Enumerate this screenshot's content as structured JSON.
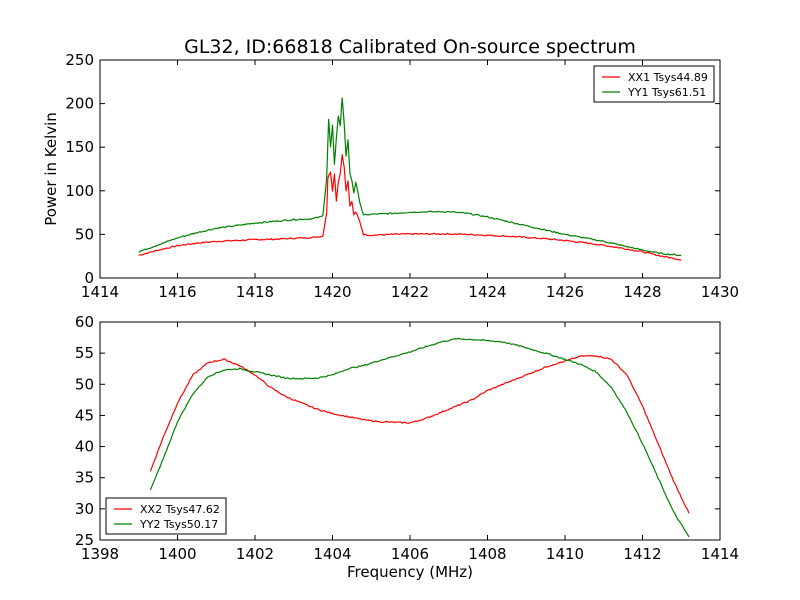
{
  "chart_data": [
    {
      "type": "line",
      "title": "GL32, ID:66818 Calibrated On-source spectrum",
      "xlabel": "",
      "ylabel": "Power in Kelvin",
      "xlim": [
        1414,
        1430
      ],
      "ylim": [
        0,
        250
      ],
      "xticks": [
        1414,
        1416,
        1418,
        1420,
        1422,
        1424,
        1426,
        1428,
        1430
      ],
      "yticks": [
        0,
        50,
        100,
        150,
        200,
        250
      ],
      "legend": "top-right",
      "grid": false,
      "series": [
        {
          "name": "XX1 Tsys44.89",
          "color": "#ff0000",
          "x": [
            1415,
            1415.5,
            1416,
            1416.5,
            1417,
            1417.5,
            1418,
            1418.5,
            1419,
            1419.5,
            1419.75,
            1419.85,
            1419.88,
            1419.95,
            1420.0,
            1420.05,
            1420.1,
            1420.15,
            1420.2,
            1420.25,
            1420.3,
            1420.35,
            1420.4,
            1420.45,
            1420.5,
            1420.55,
            1420.6,
            1420.7,
            1420.8,
            1421,
            1421.5,
            1422,
            1422.5,
            1423,
            1423.5,
            1424,
            1424.5,
            1425,
            1425.5,
            1426,
            1426.5,
            1427,
            1427.5,
            1428,
            1428.5,
            1429
          ],
          "y": [
            26,
            32,
            37,
            40,
            42,
            43,
            44,
            44.5,
            45.5,
            46.5,
            48,
            75,
            115,
            122,
            100,
            120,
            88,
            110,
            120,
            142,
            128,
            100,
            112,
            82,
            88,
            72,
            76,
            65,
            50,
            49,
            50,
            50.5,
            50.5,
            50.5,
            50,
            49,
            48,
            46.5,
            45,
            43,
            40.5,
            37.5,
            34,
            30,
            25,
            21
          ]
        },
        {
          "name": "YY1 Tsys61.51",
          "color": "#008000",
          "x": [
            1415,
            1415.5,
            1416,
            1416.5,
            1417,
            1417.5,
            1418,
            1418.5,
            1419,
            1419.5,
            1419.75,
            1419.85,
            1419.9,
            1419.95,
            1420.0,
            1420.05,
            1420.1,
            1420.15,
            1420.2,
            1420.25,
            1420.3,
            1420.35,
            1420.4,
            1420.45,
            1420.5,
            1420.55,
            1420.6,
            1420.7,
            1420.8,
            1421,
            1421.5,
            1422,
            1422.5,
            1423,
            1423.5,
            1424,
            1424.5,
            1425,
            1425.5,
            1426,
            1426.5,
            1427,
            1427.5,
            1428,
            1428.5,
            1429
          ],
          "y": [
            30,
            38,
            46,
            52,
            57,
            60,
            63,
            65,
            67,
            68,
            71,
            115,
            182,
            150,
            175,
            130,
            160,
            185,
            175,
            207,
            178,
            140,
            158,
            120,
            112,
            98,
            110,
            88,
            72,
            73,
            74,
            75.5,
            76,
            76,
            74,
            70,
            65,
            60,
            55,
            50,
            46,
            42,
            37,
            32,
            28,
            26
          ]
        }
      ]
    },
    {
      "type": "line",
      "title": "",
      "xlabel": "Frequency (MHz)",
      "ylabel": "",
      "xlim": [
        1398,
        1414
      ],
      "ylim": [
        25,
        60
      ],
      "xticks": [
        1398,
        1400,
        1402,
        1404,
        1406,
        1408,
        1410,
        1412,
        1414
      ],
      "yticks": [
        25,
        30,
        35,
        40,
        45,
        50,
        55,
        60
      ],
      "legend": "bottom-left",
      "grid": false,
      "series": [
        {
          "name": "XX2 Tsys47.62",
          "color": "#ff0000",
          "x": [
            1399.3,
            1399.6,
            1400.0,
            1400.4,
            1400.8,
            1401.2,
            1401.6,
            1402.0,
            1402.4,
            1402.8,
            1403.2,
            1403.6,
            1404.0,
            1404.4,
            1404.8,
            1405.2,
            1405.6,
            1406.0,
            1406.4,
            1406.8,
            1407.2,
            1407.6,
            1408.0,
            1408.4,
            1408.8,
            1409.2,
            1409.6,
            1410.0,
            1410.4,
            1410.8,
            1411.2,
            1411.6,
            1412.0,
            1412.4,
            1412.8,
            1413.2
          ],
          "y": [
            36,
            41,
            47,
            51.5,
            53.5,
            54,
            53,
            51.5,
            49.5,
            48,
            47,
            46,
            45.3,
            44.8,
            44.3,
            44.0,
            43.9,
            43.8,
            44.5,
            45.5,
            46.5,
            47.5,
            49,
            50,
            51,
            52,
            53,
            53.7,
            54.5,
            54.6,
            54,
            51.5,
            46.5,
            40.5,
            34.5,
            29.3
          ]
        },
        {
          "name": "YY2 Tsys50.17",
          "color": "#008000",
          "x": [
            1399.3,
            1399.6,
            1400.0,
            1400.4,
            1400.8,
            1401.2,
            1401.6,
            1402.0,
            1402.4,
            1402.8,
            1403.2,
            1403.6,
            1404.0,
            1404.4,
            1404.8,
            1405.2,
            1405.6,
            1406.0,
            1406.4,
            1406.8,
            1407.2,
            1407.6,
            1408.0,
            1408.4,
            1408.8,
            1409.2,
            1409.6,
            1410.0,
            1410.4,
            1410.8,
            1411.2,
            1411.6,
            1412.0,
            1412.4,
            1412.8,
            1413.2
          ],
          "y": [
            33,
            37.5,
            44,
            48.5,
            51.3,
            52.3,
            52.5,
            52,
            51.5,
            51,
            50.9,
            51,
            51.5,
            52.5,
            53,
            53.8,
            54.5,
            55.2,
            56,
            56.8,
            57.3,
            57.2,
            57,
            56.8,
            56.2,
            55.5,
            54.8,
            54,
            53.2,
            52,
            49.5,
            45.5,
            40.5,
            35,
            29.5,
            25.5
          ]
        }
      ]
    }
  ]
}
